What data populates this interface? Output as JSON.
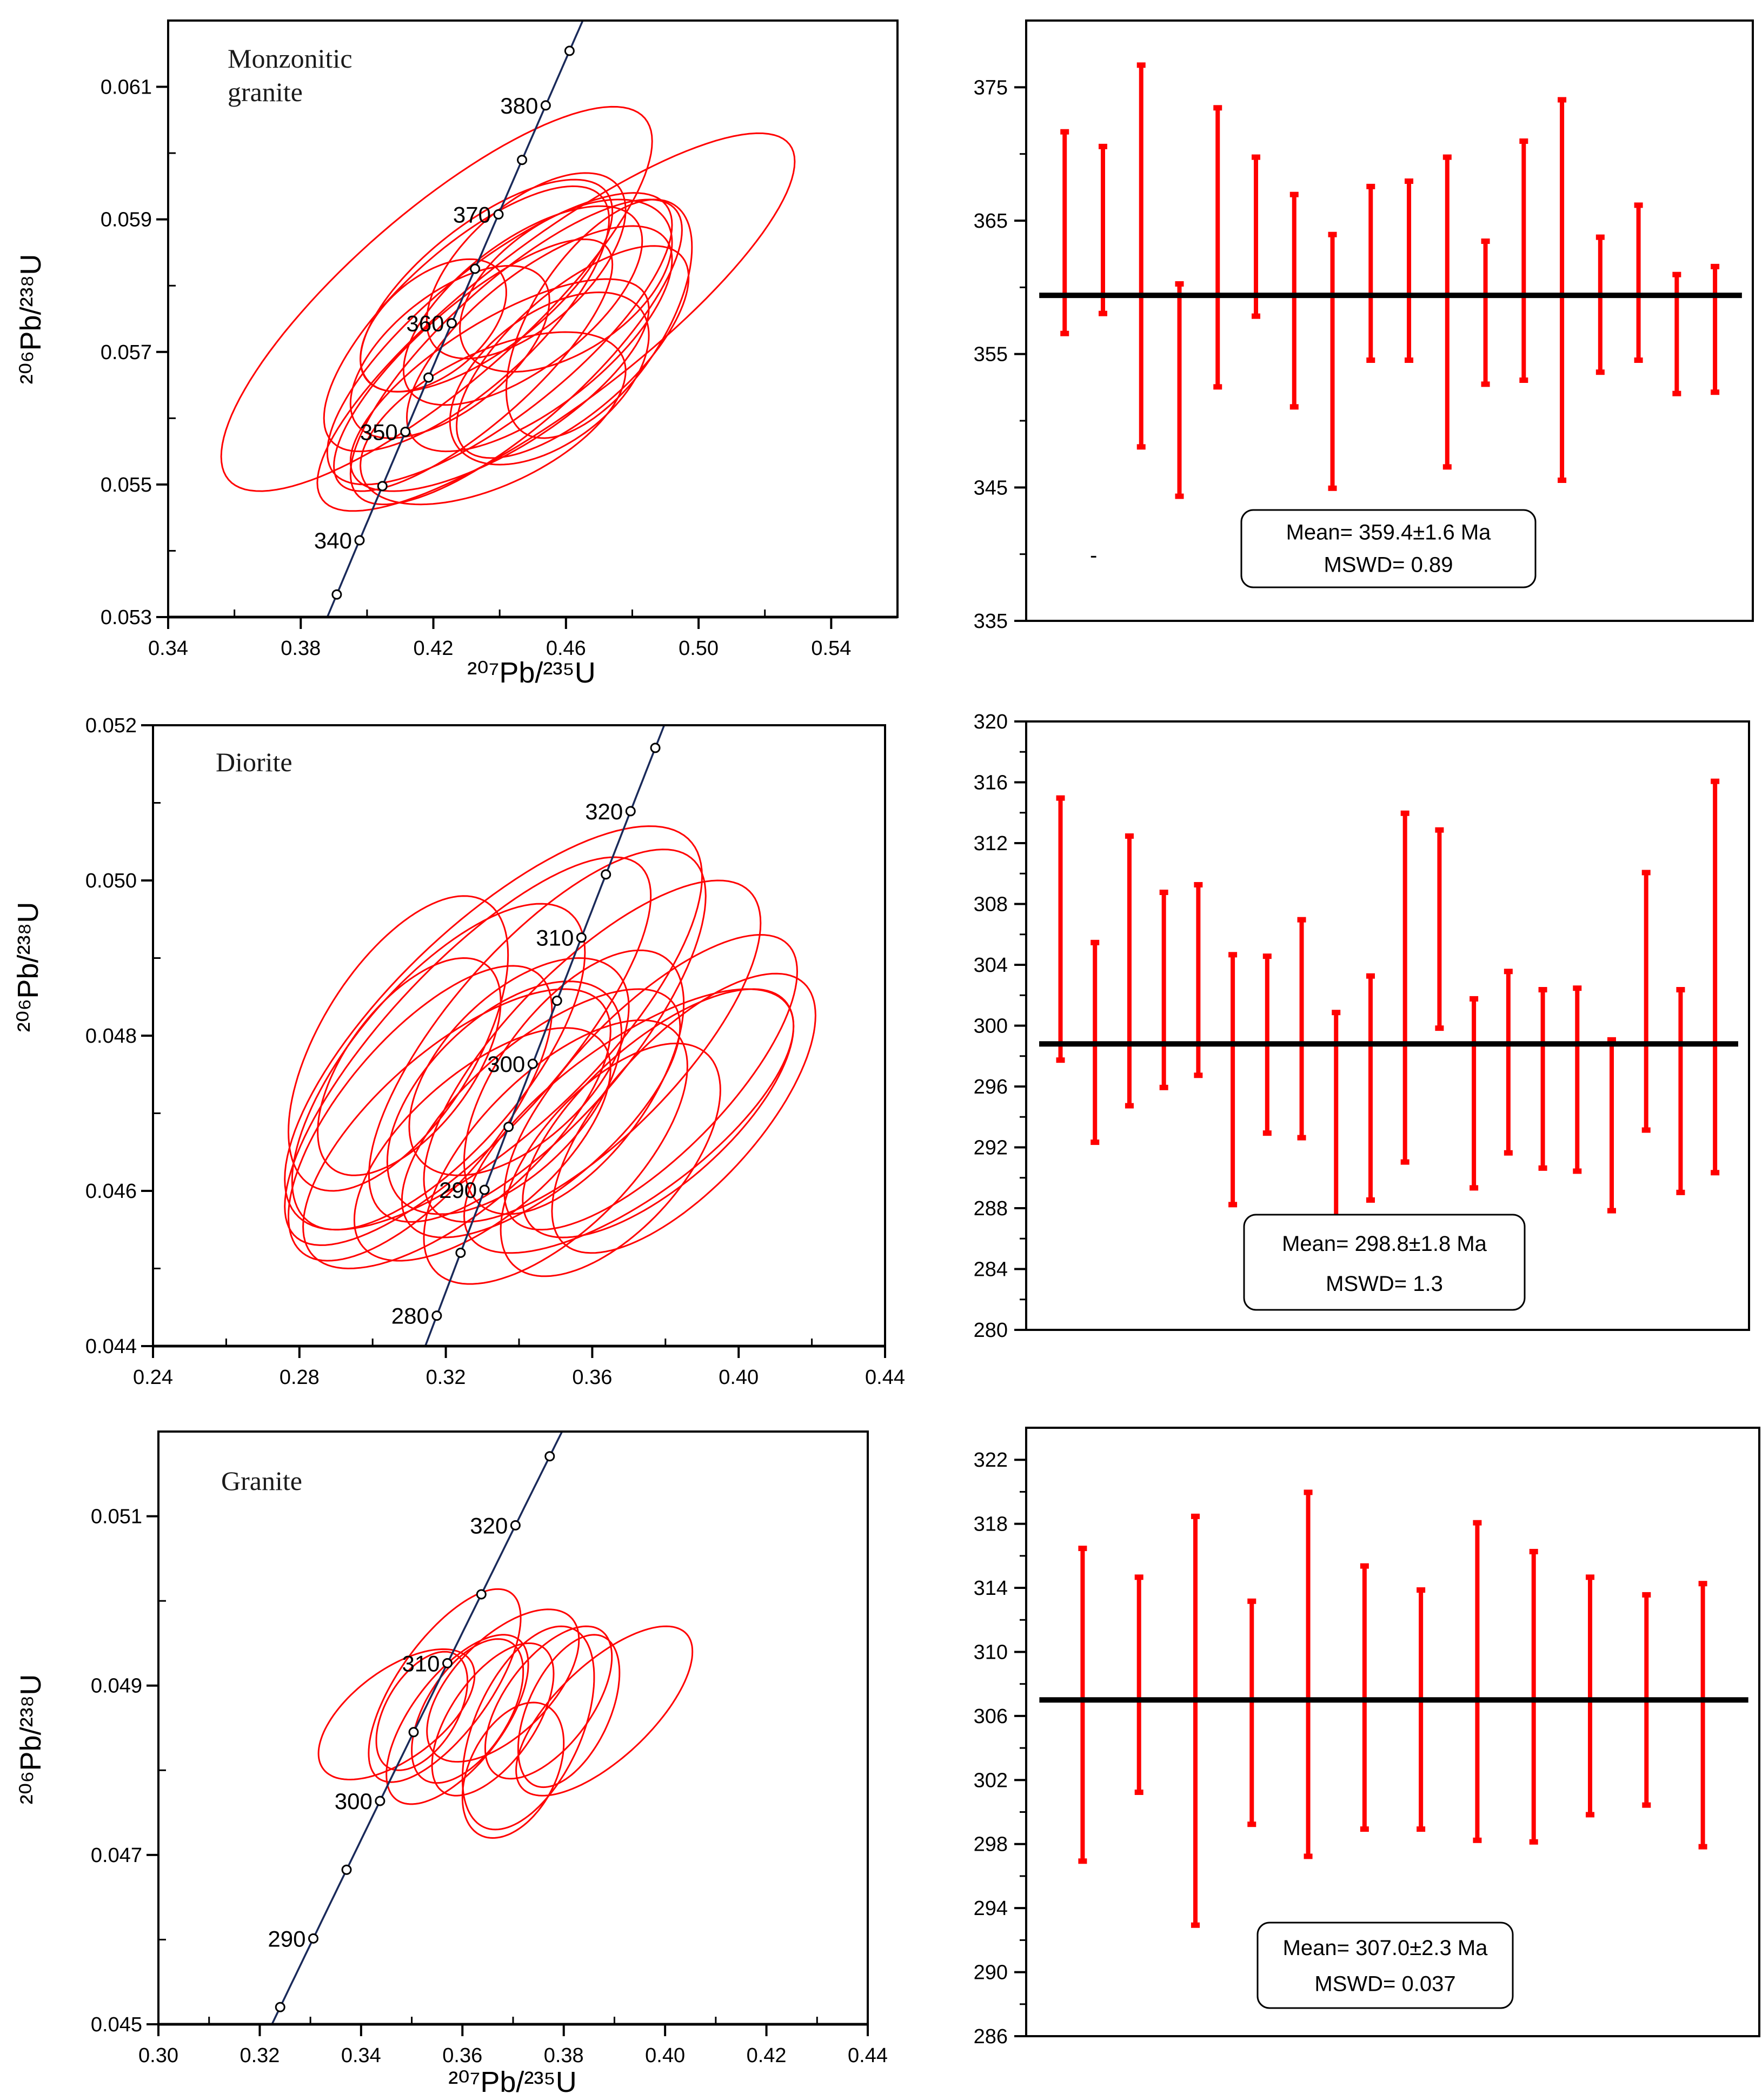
{
  "colors": {
    "ellipse": "#ff0000",
    "concordia": "#1a2a5a",
    "error_bar": "#ff0000",
    "mean_line": "#000000"
  },
  "chart_data": [
    {
      "type": "concordia",
      "sample_label_lines": [
        "Monzonitic",
        "granite"
      ],
      "xlabel": "²⁰⁷Pb/²³⁵U",
      "ylabel": "²⁰⁶Pb/²³⁸U",
      "xlim": [
        0.34,
        0.56
      ],
      "ylim": [
        0.053,
        0.062
      ],
      "xticks": [
        "0.34",
        "0.38",
        "0.42",
        "0.46",
        "0.50",
        "0.54"
      ],
      "yticks": [
        "0.053",
        "0.055",
        "0.057",
        "0.059",
        "0.061"
      ],
      "concordia_ages_ma": [
        335,
        340,
        345,
        350,
        355,
        360,
        365,
        370,
        375,
        380,
        385
      ],
      "concordia_labels": [
        "340",
        "350",
        "360",
        "370",
        "380"
      ],
      "ellipses": [
        {
          "x": 0.421,
          "y": 0.0578,
          "ex": 0.065,
          "ey": 0.0029,
          "rho": 0.82
        },
        {
          "x": 0.457,
          "y": 0.05745,
          "ex": 0.072,
          "ey": 0.00285,
          "rho": 0.85
        },
        {
          "x": 0.44,
          "y": 0.0572,
          "ex": 0.052,
          "ey": 0.0022,
          "rho": 0.78
        },
        {
          "x": 0.445,
          "y": 0.057,
          "ex": 0.05,
          "ey": 0.0023,
          "rho": 0.8
        },
        {
          "x": 0.43,
          "y": 0.0575,
          "ex": 0.043,
          "ey": 0.002,
          "rho": 0.75
        },
        {
          "x": 0.436,
          "y": 0.058,
          "ex": 0.038,
          "ey": 0.0016,
          "rho": 0.7
        },
        {
          "x": 0.447,
          "y": 0.0577,
          "ex": 0.036,
          "ey": 0.0015,
          "rho": 0.65
        },
        {
          "x": 0.452,
          "y": 0.0572,
          "ex": 0.04,
          "ey": 0.0017,
          "rho": 0.7
        },
        {
          "x": 0.425,
          "y": 0.057,
          "ex": 0.03,
          "ey": 0.0013,
          "rho": 0.6
        },
        {
          "x": 0.462,
          "y": 0.057,
          "ex": 0.035,
          "ey": 0.0016,
          "rho": 0.7
        },
        {
          "x": 0.44,
          "y": 0.0565,
          "ex": 0.045,
          "ey": 0.0016,
          "rho": 0.72
        },
        {
          "x": 0.455,
          "y": 0.0566,
          "ex": 0.03,
          "ey": 0.0013,
          "rho": 0.5
        },
        {
          "x": 0.432,
          "y": 0.0568,
          "ex": 0.042,
          "ey": 0.0019,
          "rho": 0.8
        },
        {
          "x": 0.448,
          "y": 0.0583,
          "ex": 0.03,
          "ey": 0.0014,
          "rho": 0.6
        },
        {
          "x": 0.47,
          "y": 0.0575,
          "ex": 0.028,
          "ey": 0.0018,
          "rho": 0.6
        },
        {
          "x": 0.42,
          "y": 0.0574,
          "ex": 0.022,
          "ey": 0.001,
          "rho": 0.5
        },
        {
          "x": 0.438,
          "y": 0.056,
          "ex": 0.04,
          "ey": 0.0013,
          "rho": 0.55
        },
        {
          "x": 0.46,
          "y": 0.058,
          "ex": 0.032,
          "ey": 0.0013,
          "rho": 0.5
        }
      ]
    },
    {
      "type": "errorbar",
      "ylim": [
        335,
        380
      ],
      "yticks": [
        "335",
        "345",
        "355",
        "365",
        "375"
      ],
      "bars": [
        [
          371.7,
          356.5
        ],
        [
          370.6,
          358.0
        ],
        [
          376.7,
          348.0
        ],
        [
          360.3,
          344.3
        ],
        [
          373.5,
          352.5
        ],
        [
          369.8,
          357.8
        ],
        [
          367.0,
          351.0
        ],
        [
          364.0,
          344.9
        ],
        [
          367.6,
          354.5
        ],
        [
          368.0,
          354.5
        ],
        [
          369.8,
          346.5
        ],
        [
          363.5,
          352.7
        ],
        [
          371.0,
          353.0
        ],
        [
          374.1,
          345.5
        ],
        [
          363.8,
          353.6
        ],
        [
          366.2,
          354.5
        ],
        [
          361.0,
          352.0
        ],
        [
          361.6,
          352.1
        ]
      ],
      "mean": 359.4,
      "mean_text": "Mean= 359.4±1.6  Ma",
      "mswd_text": "MSWD= 0.89",
      "stray_mark": "-"
    },
    {
      "type": "concordia",
      "sample_label_lines": [
        "Diorite"
      ],
      "xlabel": "",
      "ylabel": "²⁰⁶Pb/²³⁸U",
      "xlim": [
        0.24,
        0.44
      ],
      "ylim": [
        0.044,
        0.052
      ],
      "xticks": [
        "0.24",
        "0.28",
        "0.32",
        "0.36",
        "0.40",
        "0.44"
      ],
      "yticks": [
        "0.044",
        "0.046",
        "0.048",
        "0.050",
        "0.052"
      ],
      "concordia_ages_ma": [
        280,
        285,
        290,
        295,
        300,
        305,
        310,
        315,
        320,
        325
      ],
      "concordia_labels": [
        "280",
        "290",
        "300",
        "310",
        "320"
      ],
      "ellipses": [
        {
          "x": 0.333,
          "y": 0.0481,
          "ex": 0.057,
          "ey": 0.0026,
          "rho": 0.75
        },
        {
          "x": 0.345,
          "y": 0.048,
          "ex": 0.046,
          "ey": 0.0024,
          "rho": 0.75
        },
        {
          "x": 0.326,
          "y": 0.0478,
          "ex": 0.05,
          "ey": 0.0025,
          "rho": 0.8
        },
        {
          "x": 0.36,
          "y": 0.0478,
          "ex": 0.046,
          "ey": 0.0022,
          "rho": 0.75
        },
        {
          "x": 0.378,
          "y": 0.047,
          "ex": 0.037,
          "ey": 0.0016,
          "rho": 0.7
        },
        {
          "x": 0.385,
          "y": 0.047,
          "ex": 0.036,
          "ey": 0.0018,
          "rho": 0.7
        },
        {
          "x": 0.37,
          "y": 0.0469,
          "ex": 0.045,
          "ey": 0.0017,
          "rho": 0.72
        },
        {
          "x": 0.318,
          "y": 0.0476,
          "ex": 0.04,
          "ey": 0.0021,
          "rho": 0.7
        },
        {
          "x": 0.31,
          "y": 0.0476,
          "ex": 0.025,
          "ey": 0.0014,
          "rho": 0.6
        },
        {
          "x": 0.336,
          "y": 0.0472,
          "ex": 0.032,
          "ey": 0.0015,
          "rho": 0.55
        },
        {
          "x": 0.323,
          "y": 0.0468,
          "ex": 0.042,
          "ey": 0.0018,
          "rho": 0.7
        },
        {
          "x": 0.35,
          "y": 0.0465,
          "ex": 0.036,
          "ey": 0.0017,
          "rho": 0.65
        },
        {
          "x": 0.355,
          "y": 0.0474,
          "ex": 0.03,
          "ey": 0.0017,
          "rho": 0.6
        },
        {
          "x": 0.307,
          "y": 0.0479,
          "ex": 0.03,
          "ey": 0.0019,
          "rho": 0.6
        },
        {
          "x": 0.33,
          "y": 0.0466,
          "ex": 0.035,
          "ey": 0.0015,
          "rho": 0.65
        },
        {
          "x": 0.365,
          "y": 0.0464,
          "ex": 0.03,
          "ey": 0.0015,
          "rho": 0.6
        },
        {
          "x": 0.346,
          "y": 0.047,
          "ex": 0.038,
          "ey": 0.0016,
          "rho": 0.7
        },
        {
          "x": 0.376,
          "y": 0.0474,
          "ex": 0.04,
          "ey": 0.0019,
          "rho": 0.75
        },
        {
          "x": 0.313,
          "y": 0.047,
          "ex": 0.036,
          "ey": 0.0019,
          "rho": 0.7
        },
        {
          "x": 0.34,
          "y": 0.0476,
          "ex": 0.03,
          "ey": 0.0014,
          "rho": 0.55
        }
      ]
    },
    {
      "type": "errorbar",
      "ylim": [
        280,
        320
      ],
      "yticks": [
        "280",
        "284",
        "288",
        "292",
        "296",
        "300",
        "304",
        "308",
        "312",
        "316",
        "320"
      ],
      "bars": [
        [
          315.0,
          297.7
        ],
        [
          305.5,
          292.3
        ],
        [
          312.5,
          294.7
        ],
        [
          308.8,
          295.9
        ],
        [
          309.3,
          296.7
        ],
        [
          304.7,
          288.2
        ],
        [
          304.6,
          292.9
        ],
        [
          307.0,
          292.6
        ],
        [
          300.9,
          287.0
        ],
        [
          303.3,
          288.5
        ],
        [
          314.0,
          291.0
        ],
        [
          312.9,
          299.8
        ],
        [
          301.8,
          289.3
        ],
        [
          303.6,
          291.6
        ],
        [
          302.4,
          290.6
        ],
        [
          302.5,
          290.4
        ],
        [
          299.1,
          287.8
        ],
        [
          310.1,
          293.1
        ],
        [
          302.4,
          289.0
        ],
        [
          316.1,
          290.3
        ]
      ],
      "mean": 298.8,
      "mean_text": "Mean= 298.8±1.8  Ma",
      "mswd_text": "MSWD= 1.3"
    },
    {
      "type": "concordia",
      "sample_label_lines": [
        "Granite"
      ],
      "xlabel": "²⁰⁷Pb/²³⁵U",
      "ylabel": "²⁰⁶Pb/²³⁸U",
      "xlim": [
        0.3,
        0.44
      ],
      "ylim": [
        0.045,
        0.052
      ],
      "xticks": [
        "0.30",
        "0.32",
        "0.34",
        "0.36",
        "0.38",
        "0.40",
        "0.42",
        "0.44"
      ],
      "yticks": [
        "0.045",
        "0.047",
        "0.049",
        "0.051"
      ],
      "concordia_ages_ma": [
        285,
        290,
        295,
        300,
        305,
        310,
        315,
        320,
        325
      ],
      "concordia_labels": [
        "290",
        "300",
        "310",
        "320"
      ],
      "ellipses": [
        {
          "x": 0.347,
          "y": 0.04866,
          "ex": 0.0154,
          "ey": 0.00077,
          "rho": 0.6
        },
        {
          "x": 0.3565,
          "y": 0.049,
          "ex": 0.015,
          "ey": 0.00114,
          "rho": 0.7
        },
        {
          "x": 0.388,
          "y": 0.0487,
          "ex": 0.0174,
          "ey": 0.001,
          "rho": 0.7
        },
        {
          "x": 0.373,
          "y": 0.0485,
          "ex": 0.013,
          "ey": 0.0012,
          "rho": 0.5
        },
        {
          "x": 0.352,
          "y": 0.0487,
          "ex": 0.009,
          "ey": 0.0007,
          "rho": 0.5
        },
        {
          "x": 0.361,
          "y": 0.0487,
          "ex": 0.011,
          "ey": 0.00085,
          "rho": 0.55
        },
        {
          "x": 0.366,
          "y": 0.0486,
          "ex": 0.012,
          "ey": 0.0009,
          "rho": 0.6
        },
        {
          "x": 0.377,
          "y": 0.0488,
          "ex": 0.0125,
          "ey": 0.0009,
          "rho": 0.6
        },
        {
          "x": 0.37,
          "y": 0.048,
          "ex": 0.01,
          "ey": 0.0008,
          "rho": 0.4
        },
        {
          "x": 0.359,
          "y": 0.0486,
          "ex": 0.014,
          "ey": 0.001,
          "rho": 0.65
        },
        {
          "x": 0.381,
          "y": 0.0487,
          "ex": 0.01,
          "ey": 0.0009,
          "rho": 0.5
        },
        {
          "x": 0.368,
          "y": 0.049,
          "ex": 0.015,
          "ey": 0.0009,
          "rho": 0.6
        }
      ]
    },
    {
      "type": "errorbar",
      "ylim": [
        286,
        324
      ],
      "yticks": [
        "286",
        "290",
        "294",
        "298",
        "302",
        "306",
        "310",
        "314",
        "318",
        "322"
      ],
      "bars": [
        [
          316.5,
          296.9
        ],
        [
          314.7,
          301.2
        ],
        [
          318.5,
          292.9
        ],
        [
          313.2,
          299.2
        ],
        [
          320.0,
          297.2
        ],
        [
          315.4,
          298.9
        ],
        [
          313.9,
          298.9
        ],
        [
          318.1,
          298.2
        ],
        [
          316.3,
          298.1
        ],
        [
          314.7,
          299.8
        ],
        [
          313.6,
          300.4
        ],
        [
          314.3,
          297.8
        ]
      ],
      "mean": 307.0,
      "mean_text": "Mean= 307.0±2.3 Ma",
      "mswd_text": "MSWD= 0.037"
    }
  ]
}
